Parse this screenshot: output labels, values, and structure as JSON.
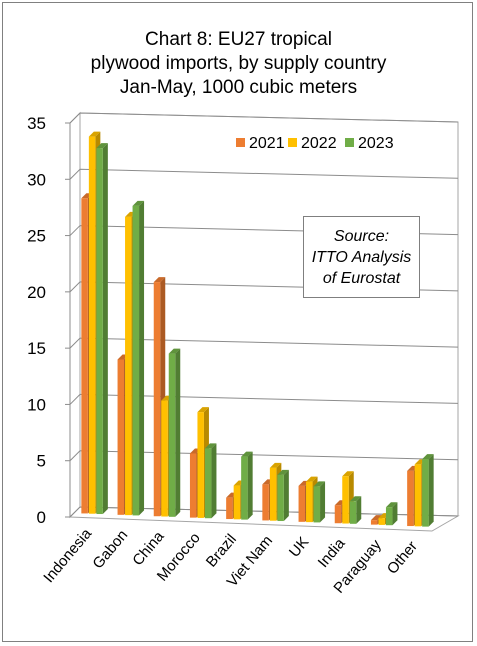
{
  "chart_data": {
    "type": "bar",
    "title_lines": [
      "Chart 8: EU27 tropical",
      "plywood imports, by supply country",
      "Jan-May, 1000 cubic meters"
    ],
    "categories": [
      "Indonesia",
      "Gabon",
      "China",
      "Morocco",
      "Brazil",
      "Viet Nam",
      "UK",
      "India",
      "Paraguay",
      "Other"
    ],
    "series": [
      {
        "name": "2021",
        "color": "#ED7D31",
        "values": [
          28.0,
          13.8,
          20.8,
          5.7,
          1.9,
          3.2,
          3.2,
          1.6,
          0.4,
          4.9
        ]
      },
      {
        "name": "2022",
        "color": "#FFC000",
        "values": [
          33.5,
          26.5,
          10.3,
          9.4,
          3.0,
          4.7,
          3.6,
          4.2,
          0.6,
          5.5
        ]
      },
      {
        "name": "2023",
        "color": "#70AD47",
        "values": [
          32.5,
          27.5,
          14.5,
          6.2,
          5.6,
          4.1,
          3.2,
          2.0,
          1.6,
          6.0
        ]
      }
    ],
    "ylim": [
      0,
      35
    ],
    "yticks": [
      0,
      5,
      10,
      15,
      20,
      25,
      30,
      35
    ],
    "legend_position": "top-right",
    "grid": true,
    "annotation_lines": [
      "Source:",
      "ITTO Analysis",
      "of Eurostat"
    ]
  }
}
